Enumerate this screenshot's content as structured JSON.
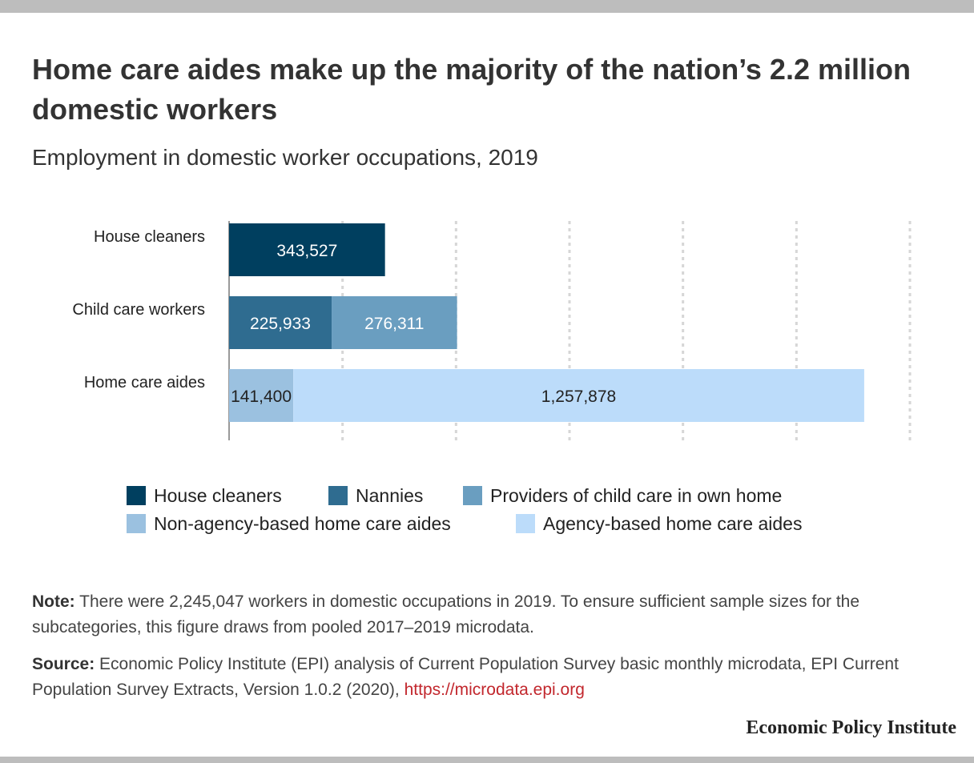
{
  "title": "Home care aides make up the majority of the nation’s 2.2 million domestic workers",
  "subtitle": "Employment in domestic worker occupations, 2019",
  "chart_data": {
    "type": "bar",
    "orientation": "horizontal",
    "stacked": true,
    "categories": [
      "House cleaners",
      "Child care workers",
      "Home care aides"
    ],
    "series": [
      {
        "name": "House cleaners",
        "color": "#003f5f",
        "label_color": "#ffffff",
        "values": [
          343527,
          null,
          null
        ]
      },
      {
        "name": "Nannies",
        "color": "#2f6c90",
        "label_color": "#ffffff",
        "values": [
          null,
          225933,
          null
        ]
      },
      {
        "name": "Providers of child care in own home",
        "color": "#6a9ec0",
        "label_color": "#ffffff",
        "values": [
          null,
          276311,
          null
        ]
      },
      {
        "name": "Non-agency-based home care aides",
        "color": "#9bc1e0",
        "label_color": "#222222",
        "values": [
          null,
          null,
          141400
        ]
      },
      {
        "name": "Agency-based home care aides",
        "color": "#bcdcfa",
        "label_color": "#222222",
        "values": [
          null,
          null,
          1257878
        ]
      }
    ],
    "data_labels": [
      [
        "343,527",
        null,
        null,
        null,
        null
      ],
      [
        null,
        "225,933",
        "276,311",
        null,
        null
      ],
      [
        null,
        null,
        null,
        "141,400",
        "1,257,878"
      ]
    ],
    "xlim": [
      0,
      1500000
    ],
    "grid": true,
    "legend": "bottom"
  },
  "legend": {
    "items": [
      {
        "label": "House cleaners",
        "color": "#003f5f"
      },
      {
        "label": "Nannies",
        "color": "#2f6c90"
      },
      {
        "label": "Providers of child care in own home",
        "color": "#6a9ec0"
      },
      {
        "label": "Non-agency-based home care aides",
        "color": "#9bc1e0"
      },
      {
        "label": "Agency-based home care aides",
        "color": "#bcdcfa"
      }
    ]
  },
  "note": {
    "label": "Note:",
    "text": " There were 2,245,047 workers in domestic occupations in 2019. To ensure sufficient sample sizes for the subcategories, this figure draws from pooled 2017–2019 microdata."
  },
  "source": {
    "label": "Source:",
    "text": " Economic Policy Institute (EPI) analysis of Current Population Survey basic monthly microdata, EPI Current Population Survey Extracts, Version 1.0.2 (2020), ",
    "link": "https://microdata.epi.org"
  },
  "organization": "Economic Policy Institute"
}
